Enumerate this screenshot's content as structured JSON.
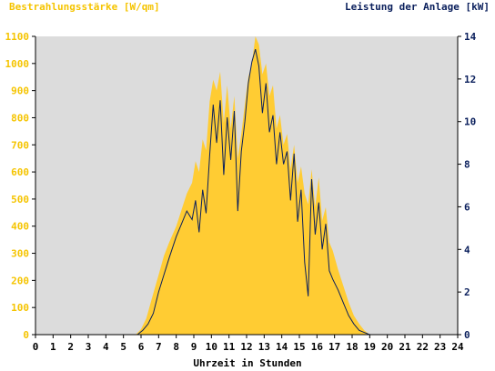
{
  "chart_data": {
    "type": "area",
    "left_axis_label": "Bestrahlungsstärke [W/qm]",
    "right_axis_label": "Leistung der Anlage [kW]",
    "xlabel": "Uhrzeit in Stunden",
    "xlim": [
      0,
      24
    ],
    "ylim_left": [
      0,
      1100
    ],
    "ylim_right": [
      0,
      14
    ],
    "x_ticks": [
      "0",
      "1",
      "2",
      "3",
      "4",
      "5",
      "6",
      "7",
      "8",
      "9",
      "10",
      "11",
      "12",
      "13",
      "14",
      "15",
      "16",
      "17",
      "18",
      "19",
      "20",
      "21",
      "22",
      "23",
      "24"
    ],
    "y_ticks_left": [
      "0",
      "100",
      "200",
      "300",
      "400",
      "500",
      "600",
      "700",
      "800",
      "900",
      "1000",
      "1100"
    ],
    "y_ticks_right": [
      "0",
      "2",
      "4",
      "6",
      "8",
      "10",
      "12",
      "14"
    ],
    "colors": {
      "irradiance": "#ffcc33",
      "power": "#0a1f5c",
      "plot_background": "#dcdcdc",
      "left_axis": "#f5c400",
      "right_axis": "#0a1f5c"
    },
    "series": [
      {
        "name": "Bestrahlungsstärke [W/qm]",
        "axis": "left",
        "x": [
          0,
          5.7,
          6.0,
          6.3,
          6.6,
          7.0,
          7.3,
          7.6,
          8.0,
          8.3,
          8.6,
          8.9,
          9.1,
          9.3,
          9.5,
          9.7,
          9.9,
          10.1,
          10.3,
          10.5,
          10.7,
          10.9,
          11.1,
          11.3,
          11.5,
          11.7,
          11.9,
          12.1,
          12.3,
          12.5,
          12.7,
          12.9,
          13.1,
          13.3,
          13.5,
          13.7,
          13.9,
          14.1,
          14.3,
          14.5,
          14.7,
          14.9,
          15.1,
          15.3,
          15.5,
          15.7,
          15.9,
          16.1,
          16.3,
          16.5,
          16.7,
          16.9,
          17.2,
          17.5,
          17.8,
          18.1,
          18.4,
          18.7,
          19.0,
          19.3,
          24
        ],
        "y": [
          0,
          0,
          20,
          60,
          130,
          220,
          290,
          340,
          400,
          460,
          520,
          560,
          640,
          600,
          720,
          680,
          860,
          940,
          900,
          970,
          780,
          920,
          760,
          880,
          650,
          740,
          850,
          950,
          1000,
          1100,
          1070,
          960,
          1000,
          880,
          920,
          760,
          810,
          700,
          740,
          610,
          700,
          560,
          620,
          520,
          480,
          610,
          470,
          580,
          420,
          470,
          340,
          310,
          240,
          180,
          120,
          70,
          40,
          15,
          0,
          0,
          0
        ]
      },
      {
        "name": "Leistung der Anlage [kW]",
        "axis": "right",
        "x": [
          0,
          5.8,
          6.1,
          6.4,
          6.7,
          7.0,
          7.3,
          7.6,
          8.0,
          8.3,
          8.6,
          8.9,
          9.1,
          9.3,
          9.5,
          9.7,
          9.9,
          10.1,
          10.3,
          10.5,
          10.7,
          10.9,
          11.1,
          11.3,
          11.5,
          11.7,
          11.9,
          12.1,
          12.3,
          12.5,
          12.7,
          12.9,
          13.1,
          13.3,
          13.5,
          13.7,
          13.9,
          14.1,
          14.3,
          14.5,
          14.7,
          14.9,
          15.1,
          15.3,
          15.5,
          15.7,
          15.9,
          16.1,
          16.3,
          16.5,
          16.7,
          16.9,
          17.2,
          17.5,
          17.8,
          18.1,
          18.4,
          18.7,
          19.0,
          19.3,
          24
        ],
        "y": [
          0,
          0,
          0.2,
          0.5,
          1.0,
          2.0,
          2.8,
          3.6,
          4.6,
          5.2,
          5.8,
          5.4,
          6.3,
          4.8,
          6.8,
          5.7,
          8.4,
          10.8,
          9.0,
          11.0,
          7.5,
          10.2,
          8.2,
          10.5,
          5.8,
          8.6,
          10.0,
          11.8,
          12.8,
          13.4,
          12.6,
          10.4,
          11.8,
          9.5,
          10.3,
          8.0,
          9.5,
          8.0,
          8.6,
          6.3,
          8.5,
          5.3,
          6.8,
          3.4,
          1.8,
          7.3,
          4.7,
          6.2,
          4.0,
          5.2,
          3.0,
          2.6,
          2.1,
          1.5,
          0.9,
          0.5,
          0.2,
          0.1,
          0,
          0,
          0
        ]
      }
    ],
    "grid": false,
    "legend": "none"
  }
}
